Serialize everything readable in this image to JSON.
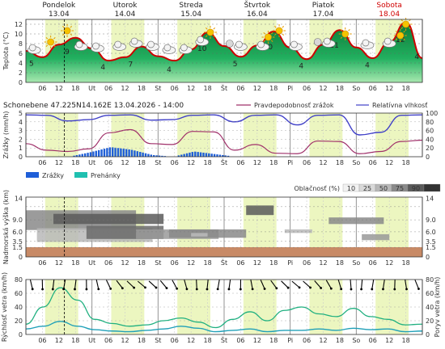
{
  "header": {
    "days": [
      {
        "name": "Pondelok",
        "date": "13.04",
        "weekend": false
      },
      {
        "name": "Utorok",
        "date": "14.04",
        "weekend": false
      },
      {
        "name": "Streda",
        "date": "15.04",
        "weekend": false
      },
      {
        "name": "Štvrtok",
        "date": "16.04",
        "weekend": false
      },
      {
        "name": "Piatok",
        "date": "17.04",
        "weekend": false
      },
      {
        "name": "Sobota",
        "date": "18.04",
        "weekend": true
      }
    ],
    "day_labels_axis": [
      "Ut",
      "St",
      "Št",
      "Pi",
      "So"
    ],
    "hour_labels": [
      "06",
      "12",
      "18",
      "06",
      "12",
      "18",
      "06",
      "12",
      "18",
      "06",
      "12",
      "18",
      "06",
      "12",
      "18",
      "06",
      "12",
      "18"
    ]
  },
  "colors": {
    "temp_line": "#cc0000",
    "green_fill": "#1fa05a",
    "day_shade": "#ecf6c0",
    "rain_bar": "#1f5fd8",
    "shower_bar": "#20c0b0",
    "precip_prob": "#a0306a",
    "humidity": "#4040c8",
    "wind": "#20a0b8",
    "gust": "#20b080",
    "brown": "#c88a66"
  },
  "panels": {
    "temp": {
      "ylabel": "Teplota (°C)",
      "ticks": [
        "0",
        "2",
        "4",
        "6",
        "8",
        "10",
        "12"
      ],
      "labels": [
        "5",
        "9",
        "4",
        "7",
        "4",
        "10",
        "5",
        "10",
        "4",
        "11",
        "4",
        "12",
        "4"
      ]
    },
    "precip": {
      "station": "Schonebene   47.225N14.162E   13.04.2026 - 14:00",
      "ylabel": "Zrážky (mm/h)",
      "left_ticks": [
        "0",
        "1",
        "2",
        "3",
        "4",
        "5"
      ],
      "right_ticks": [
        "0",
        "20",
        "40",
        "60",
        "80",
        "100"
      ],
      "legend_prob": "Pravdepodobnosť zrážok",
      "legend_hum": "Relatívna vlhkosť",
      "legend_rain": "Zrážky",
      "legend_shower": "Prehánky"
    },
    "cloud": {
      "title": "Oblačnosť (%)",
      "scale": [
        "10",
        "25",
        "50",
        "75",
        "90",
        "100"
      ],
      "ylabel": "Nadmorská výška (km)",
      "left_ticks": [
        "0",
        "1.5",
        "3.5",
        "6.0",
        "9.0",
        "14"
      ],
      "right_ticks": [
        "0",
        "1.5",
        "3.5",
        "6.0",
        "9.0",
        "14"
      ]
    },
    "wind": {
      "ylabel_left": "Rýchlosť vetra (km/h)",
      "ylabel_right": "Poryv vetra (km/h)",
      "ticks": [
        "0",
        "20",
        "40",
        "60",
        "80"
      ]
    }
  },
  "chart_data": [
    {
      "type": "area",
      "title": "",
      "ylabel": "Teplota (°C)",
      "ylim": [
        0,
        13
      ],
      "x_hours": [
        0,
        6,
        12,
        18,
        24,
        30,
        36,
        42,
        48,
        54,
        60,
        66,
        72,
        78,
        84,
        90,
        96,
        102,
        108,
        114,
        120,
        126,
        132,
        138,
        144
      ],
      "series": [
        {
          "values": [
            6.5,
            5.2,
            7.8,
            9.2,
            7.0,
            4.5,
            5.2,
            7.4,
            5.4,
            4.5,
            6.8,
            10.3,
            7.5,
            5.3,
            7.6,
            10.5,
            7.2,
            4.8,
            7.8,
            10.8,
            7.2,
            5.0,
            8.3,
            12.4,
            5.0
          ]
        }
      ]
    },
    {
      "type": "line",
      "title": "",
      "ylabel": "Zrážky (mm/h)",
      "series": [
        {
          "name": "Pravdepodobnosť zrážok",
          "values": [
            30,
            15,
            12,
            18,
            55,
            62,
            30,
            28,
            58,
            57,
            15,
            28,
            8,
            7,
            36,
            35,
            7,
            12,
            35,
            38
          ]
        },
        {
          "name": "Relatívna vlhkosť",
          "values": [
            96,
            95,
            82,
            85,
            95,
            96,
            84,
            85,
            95,
            96,
            80,
            95,
            96,
            73,
            95,
            96,
            50,
            56,
            95,
            96
          ]
        },
        {
          "name": "Zrážky",
          "values": [
            0,
            0,
            0,
            0.5,
            1.1,
            0.8,
            0.2,
            0,
            0.6,
            0.3,
            0,
            0,
            0,
            0,
            0,
            0,
            0,
            0,
            0,
            0
          ]
        }
      ]
    },
    {
      "type": "line",
      "title": "",
      "ylabel": "Rýchlosť vetra (km/h)",
      "series": [
        {
          "name": "Rýchlosť vetra",
          "values": [
            8,
            12,
            19,
            12,
            7,
            5,
            4,
            6,
            8,
            12,
            9,
            4,
            6,
            8,
            4,
            6,
            6,
            8,
            6,
            9,
            7,
            8,
            4,
            5
          ]
        },
        {
          "name": "Poryv vetra",
          "values": [
            15,
            40,
            68,
            50,
            22,
            16,
            12,
            14,
            20,
            24,
            18,
            10,
            22,
            33,
            20,
            35,
            40,
            30,
            26,
            38,
            26,
            22,
            14,
            15
          ]
        }
      ]
    }
  ]
}
